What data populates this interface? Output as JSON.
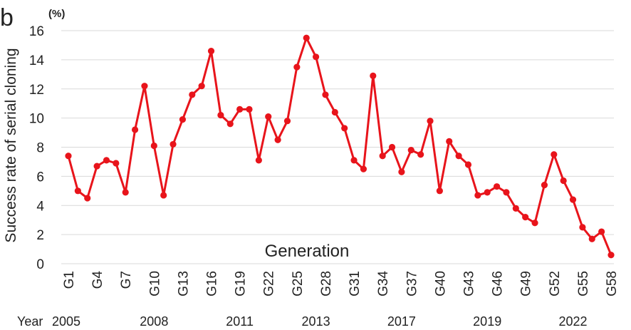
{
  "chart_data": {
    "type": "line",
    "panel_label": "b",
    "unit_label": "(%)",
    "ylabel": "Success rate of serial cloning",
    "xlabel": "Generation",
    "year_label": "Year",
    "ylim": [
      0,
      16
    ],
    "yticks": [
      "0",
      "2",
      "4",
      "6",
      "8",
      "10",
      "12",
      "14",
      "16"
    ],
    "grid": true,
    "legend": "none",
    "color": "#e8141b",
    "x": [
      "G1",
      "G2",
      "G3",
      "G4",
      "G5",
      "G6",
      "G7",
      "G8",
      "G9",
      "G10",
      "G11",
      "G12",
      "G13",
      "G14",
      "G15",
      "G16",
      "G17",
      "G18",
      "G19",
      "G20",
      "G21",
      "G22",
      "G23",
      "G24",
      "G25",
      "G26",
      "G27",
      "G28",
      "G29",
      "G30",
      "G31",
      "G32",
      "G33",
      "G34",
      "G35",
      "G36",
      "G37",
      "G38",
      "G39",
      "G40",
      "G41",
      "G42",
      "G43",
      "G44",
      "G45",
      "G46",
      "G47",
      "G48",
      "G49",
      "G50",
      "G51",
      "G52",
      "G53",
      "G54",
      "G55",
      "G56",
      "G57",
      "G58"
    ],
    "xtick_labels": [
      "G1",
      "G4",
      "G7",
      "G10",
      "G13",
      "G16",
      "G19",
      "G22",
      "G25",
      "G28",
      "G31",
      "G34",
      "G37",
      "G40",
      "G43",
      "G46",
      "G49",
      "G52",
      "G55",
      "G58"
    ],
    "values": [
      7.4,
      5.0,
      4.5,
      6.7,
      7.1,
      6.9,
      4.9,
      9.2,
      12.2,
      8.1,
      4.7,
      8.2,
      9.9,
      11.6,
      12.2,
      14.6,
      10.2,
      9.6,
      10.6,
      10.6,
      7.1,
      10.1,
      8.5,
      9.8,
      13.5,
      15.5,
      14.2,
      11.6,
      10.4,
      9.3,
      7.1,
      6.5,
      12.9,
      7.4,
      8.0,
      6.3,
      7.8,
      7.5,
      9.8,
      5.0,
      8.4,
      7.4,
      6.8,
      4.7,
      4.9,
      5.3,
      4.9,
      3.8,
      3.2,
      2.8,
      5.4,
      7.5,
      5.7,
      4.4,
      2.5,
      1.7,
      2.2,
      0.6
    ],
    "years": [
      {
        "label": "2005",
        "at": "G1"
      },
      {
        "label": "2008",
        "at": "G10"
      },
      {
        "label": "2011",
        "at": "G19"
      },
      {
        "label": "2013",
        "at": "G27"
      },
      {
        "label": "2017",
        "at": "G36"
      },
      {
        "label": "2019",
        "at": "G45"
      },
      {
        "label": "2022",
        "at": "G54"
      }
    ]
  }
}
